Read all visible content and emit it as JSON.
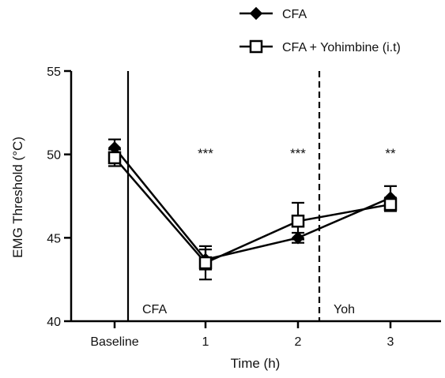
{
  "chart_data": {
    "type": "line",
    "title": "",
    "xlabel": "Time (h)",
    "ylabel": "EMG Threshold (°C)",
    "categories": [
      "Baseline",
      "1",
      "2",
      "3"
    ],
    "ylim": [
      40,
      55
    ],
    "yticks": [
      40,
      45,
      50,
      55
    ],
    "grid": false,
    "legend_position": "top-right",
    "series": [
      {
        "name": "CFA",
        "marker": "diamond-filled",
        "color": "#000000",
        "values": [
          50.4,
          43.7,
          45.0,
          47.4
        ],
        "error": [
          0.5,
          0.6,
          0.3,
          0.7
        ]
      },
      {
        "name": "CFA + Yohimbine (i.t)",
        "marker": "square-open",
        "color": "#000000",
        "values": [
          49.8,
          43.5,
          46.0,
          47.0
        ],
        "error": [
          0.5,
          1.0,
          1.1,
          0.4
        ]
      }
    ],
    "significance_labels": [
      {
        "category": "1",
        "text": "***"
      },
      {
        "category": "2",
        "text": "***"
      },
      {
        "category": "3",
        "text": "**"
      }
    ],
    "event_markers": [
      {
        "label": "CFA",
        "style": "solid"
      },
      {
        "label": "Yoh",
        "style": "dashed"
      }
    ]
  }
}
